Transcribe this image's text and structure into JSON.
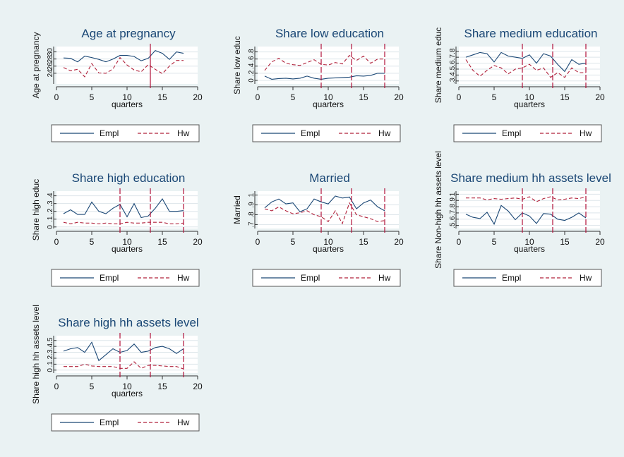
{
  "colors": {
    "background": "#eaf2f3",
    "plot_background": "#ffffff",
    "gridline": "#dde5ea",
    "empl_line": "#1a4775",
    "hw_line": "#b0203a",
    "vline": "#b0123a",
    "title": "#1a4775"
  },
  "legend_labels": {
    "empl": "Empl",
    "hw": "Hw"
  },
  "chart_data": [
    {
      "id": "age",
      "type": "line",
      "title": "Age at pregnancy",
      "xlabel": "quarters",
      "ylabel": "Age at pregnancy",
      "xlim": [
        0,
        20
      ],
      "xticks": [
        "0",
        "5",
        "10",
        "15",
        "20"
      ],
      "ylim": [
        21,
        31.5
      ],
      "yticks": [
        {
          "v": 24,
          "t": "24"
        },
        {
          "v": 26,
          "t": "26"
        },
        {
          "v": 28,
          "t": "28"
        },
        {
          "v": 30,
          "t": "30"
        }
      ],
      "grid": true,
      "legend_position": "bottom",
      "vlines": [
        13.3
      ],
      "x": [
        1,
        2,
        3,
        4,
        5,
        6,
        7,
        8,
        9,
        10,
        11,
        12,
        13,
        14,
        15,
        16,
        17,
        18
      ],
      "series": [
        {
          "name": "Empl",
          "style": "solid",
          "values": [
            28.3,
            28.2,
            27.2,
            28.8,
            28.4,
            27.9,
            27.2,
            28.0,
            29.0,
            29.0,
            28.7,
            27.5,
            28.2,
            30.4,
            29.6,
            27.9,
            30.0,
            29.6
          ]
        },
        {
          "name": "Hw",
          "style": "dash",
          "values": [
            25.6,
            24.7,
            25.1,
            23.0,
            26.7,
            24.1,
            24.0,
            25.2,
            28.4,
            26.3,
            24.9,
            24.4,
            26.4,
            25.1,
            23.9,
            26.0,
            27.6,
            27.6
          ]
        }
      ]
    },
    {
      "id": "lowedu",
      "type": "line",
      "title": "Share low education",
      "xlabel": "quarters",
      "ylabel": "Share low educ",
      "xlim": [
        0,
        20
      ],
      "xticks": [
        "0",
        "5",
        "10",
        "15",
        "20"
      ],
      "ylim": [
        -0.1,
        0.95
      ],
      "yticks": [
        {
          "v": 0,
          "t": "0"
        },
        {
          "v": 0.2,
          "t": ".2"
        },
        {
          "v": 0.4,
          "t": ".4"
        },
        {
          "v": 0.6,
          "t": ".6"
        },
        {
          "v": 0.8,
          "t": ".8"
        }
      ],
      "grid": true,
      "legend_position": "bottom",
      "vlines": [
        9,
        13.3,
        18
      ],
      "x": [
        1,
        2,
        3,
        4,
        5,
        6,
        7,
        8,
        9,
        10,
        11,
        12,
        13,
        14,
        15,
        16,
        17,
        18
      ],
      "series": [
        {
          "name": "Empl",
          "style": "solid",
          "values": [
            0.12,
            0.03,
            0.05,
            0.06,
            0.04,
            0.06,
            0.12,
            0.06,
            0.03,
            0.06,
            0.07,
            0.08,
            0.09,
            0.13,
            0.12,
            0.14,
            0.2,
            0.2
          ]
        },
        {
          "name": "Hw",
          "style": "dash",
          "values": [
            0.28,
            0.52,
            0.62,
            0.48,
            0.44,
            0.42,
            0.5,
            0.58,
            0.45,
            0.43,
            0.5,
            0.46,
            0.7,
            0.56,
            0.68,
            0.48,
            0.6,
            0.6
          ]
        }
      ]
    },
    {
      "id": "mededu",
      "type": "line",
      "title": "Share medium education",
      "xlabel": "quarters",
      "ylabel": "Share medium educ",
      "xlim": [
        0,
        20
      ],
      "xticks": [
        "0",
        "5",
        "10",
        "15",
        "20"
      ],
      "ylim": [
        0.25,
        0.88
      ],
      "yticks": [
        {
          "v": 0.3,
          "t": ".3"
        },
        {
          "v": 0.4,
          "t": ".4"
        },
        {
          "v": 0.5,
          "t": ".5"
        },
        {
          "v": 0.6,
          "t": ".6"
        },
        {
          "v": 0.7,
          "t": ".7"
        },
        {
          "v": 0.8,
          "t": ".8"
        }
      ],
      "grid": true,
      "legend_position": "bottom",
      "vlines": [
        9,
        13.3,
        18
      ],
      "x": [
        1,
        2,
        3,
        4,
        5,
        6,
        7,
        8,
        9,
        10,
        11,
        12,
        13,
        14,
        15,
        16,
        17,
        18
      ],
      "series": [
        {
          "name": "Empl",
          "style": "solid",
          "values": [
            0.7,
            0.74,
            0.78,
            0.76,
            0.62,
            0.78,
            0.72,
            0.7,
            0.68,
            0.74,
            0.6,
            0.76,
            0.72,
            0.58,
            0.46,
            0.66,
            0.58,
            0.6
          ]
        },
        {
          "name": "Hw",
          "style": "dash",
          "values": [
            0.66,
            0.48,
            0.38,
            0.48,
            0.56,
            0.52,
            0.42,
            0.5,
            0.52,
            0.58,
            0.48,
            0.52,
            0.36,
            0.44,
            0.36,
            0.52,
            0.44,
            0.44
          ]
        }
      ]
    },
    {
      "id": "highedu",
      "type": "line",
      "title": "Share high education",
      "xlabel": "quarters",
      "ylabel": "Share high educ",
      "xlim": [
        0,
        20
      ],
      "xticks": [
        "0",
        "5",
        "10",
        "15",
        "20"
      ],
      "ylim": [
        -0.02,
        0.46
      ],
      "yticks": [
        {
          "v": 0,
          "t": "0"
        },
        {
          "v": 0.1,
          "t": ".1"
        },
        {
          "v": 0.2,
          "t": ".2"
        },
        {
          "v": 0.3,
          "t": ".3"
        },
        {
          "v": 0.4,
          "t": ".4"
        }
      ],
      "grid": true,
      "legend_position": "bottom",
      "vlines": [
        9,
        13.3,
        18
      ],
      "x": [
        1,
        2,
        3,
        4,
        5,
        6,
        7,
        8,
        9,
        10,
        11,
        12,
        13,
        14,
        15,
        16,
        17,
        18
      ],
      "series": [
        {
          "name": "Empl",
          "style": "solid",
          "values": [
            0.17,
            0.22,
            0.16,
            0.16,
            0.32,
            0.2,
            0.17,
            0.24,
            0.29,
            0.13,
            0.3,
            0.12,
            0.14,
            0.24,
            0.36,
            0.2,
            0.2,
            0.21
          ]
        },
        {
          "name": "Hw",
          "style": "dash",
          "values": [
            0.06,
            0.04,
            0.06,
            0.05,
            0.05,
            0.04,
            0.05,
            0.04,
            0.04,
            0.06,
            0.05,
            0.05,
            0.06,
            0.06,
            0.06,
            0.04,
            0.04,
            0.05
          ]
        }
      ]
    },
    {
      "id": "married",
      "type": "line",
      "title": "Married",
      "xlabel": "quarters",
      "ylabel": "Married",
      "xlim": [
        0,
        20
      ],
      "xticks": [
        "0",
        "5",
        "10",
        "15",
        "20"
      ],
      "ylim": [
        0.66,
        1.04
      ],
      "yticks": [
        {
          "v": 0.7,
          "t": ".7"
        },
        {
          "v": 0.8,
          "t": ".8"
        },
        {
          "v": 0.9,
          "t": ".9"
        },
        {
          "v": 1.0,
          "t": "1"
        }
      ],
      "grid": true,
      "legend_position": "bottom",
      "vlines": [
        9,
        13.3,
        18
      ],
      "x": [
        1,
        2,
        3,
        4,
        5,
        6,
        7,
        8,
        9,
        10,
        11,
        12,
        13,
        14,
        15,
        16,
        17,
        18
      ],
      "series": [
        {
          "name": "Empl",
          "style": "solid",
          "values": [
            0.87,
            0.93,
            0.96,
            0.91,
            0.92,
            0.83,
            0.86,
            0.96,
            0.93,
            0.91,
            0.99,
            0.97,
            0.98,
            0.86,
            0.92,
            0.95,
            0.88,
            0.84
          ]
        },
        {
          "name": "Hw",
          "style": "dash",
          "values": [
            0.86,
            0.84,
            0.88,
            0.84,
            0.81,
            0.82,
            0.84,
            0.8,
            0.78,
            0.73,
            0.84,
            0.71,
            0.92,
            0.8,
            0.78,
            0.76,
            0.73,
            0.74
          ]
        }
      ]
    },
    {
      "id": "medassets",
      "type": "line",
      "title": "Share medium hh assets level",
      "xlabel": "quarters",
      "ylabel": "Share Non-high hh assets level",
      "xlim": [
        0,
        20
      ],
      "xticks": [
        "0",
        "5",
        "10",
        "15",
        "20"
      ],
      "ylim": [
        0.45,
        1.05
      ],
      "yticks": [
        {
          "v": 0.5,
          "t": ".5"
        },
        {
          "v": 0.6,
          "t": ".6"
        },
        {
          "v": 0.7,
          "t": ".7"
        },
        {
          "v": 0.8,
          "t": ".8"
        },
        {
          "v": 0.9,
          "t": ".9"
        },
        {
          "v": 1.0,
          "t": "1"
        }
      ],
      "grid": true,
      "legend_position": "bottom",
      "vlines": [
        9,
        13.3,
        18
      ],
      "x": [
        1,
        2,
        3,
        4,
        5,
        6,
        7,
        8,
        9,
        10,
        11,
        12,
        13,
        14,
        15,
        16,
        17,
        18
      ],
      "series": [
        {
          "name": "Empl",
          "style": "solid",
          "values": [
            0.68,
            0.63,
            0.61,
            0.71,
            0.52,
            0.82,
            0.73,
            0.59,
            0.7,
            0.65,
            0.53,
            0.69,
            0.68,
            0.6,
            0.58,
            0.63,
            0.7,
            0.62
          ]
        },
        {
          "name": "Hw",
          "style": "dash",
          "values": [
            0.94,
            0.94,
            0.94,
            0.91,
            0.93,
            0.92,
            0.93,
            0.94,
            0.92,
            0.96,
            0.88,
            0.93,
            0.96,
            0.91,
            0.92,
            0.94,
            0.93,
            0.96
          ]
        }
      ]
    },
    {
      "id": "highassets",
      "type": "line",
      "title": "Share high hh assets level",
      "xlabel": "quarters",
      "ylabel": "Share high hh assets level",
      "xlim": [
        0,
        20
      ],
      "xticks": [
        "0",
        "5",
        "10",
        "15",
        "20"
      ],
      "ylim": [
        -0.05,
        0.58
      ],
      "yticks": [
        {
          "v": 0,
          "t": "0"
        },
        {
          "v": 0.1,
          "t": ".1"
        },
        {
          "v": 0.2,
          "t": ".2"
        },
        {
          "v": 0.3,
          "t": ".3"
        },
        {
          "v": 0.4,
          "t": ".4"
        },
        {
          "v": 0.5,
          "t": ".5"
        }
      ],
      "grid": true,
      "legend_position": "bottom",
      "vlines": [
        9,
        13.3,
        18
      ],
      "x": [
        1,
        2,
        3,
        4,
        5,
        6,
        7,
        8,
        9,
        10,
        11,
        12,
        13,
        14,
        15,
        16,
        17,
        18
      ],
      "series": [
        {
          "name": "Empl",
          "style": "solid",
          "values": [
            0.32,
            0.36,
            0.38,
            0.3,
            0.47,
            0.16,
            0.26,
            0.36,
            0.3,
            0.33,
            0.44,
            0.3,
            0.32,
            0.38,
            0.4,
            0.36,
            0.28,
            0.36
          ]
        },
        {
          "name": "Hw",
          "style": "dash",
          "values": [
            0.06,
            0.06,
            0.06,
            0.1,
            0.07,
            0.06,
            0.06,
            0.06,
            0.03,
            0.03,
            0.14,
            0.03,
            0.08,
            0.08,
            0.07,
            0.06,
            0.06,
            0.02
          ]
        }
      ]
    }
  ]
}
